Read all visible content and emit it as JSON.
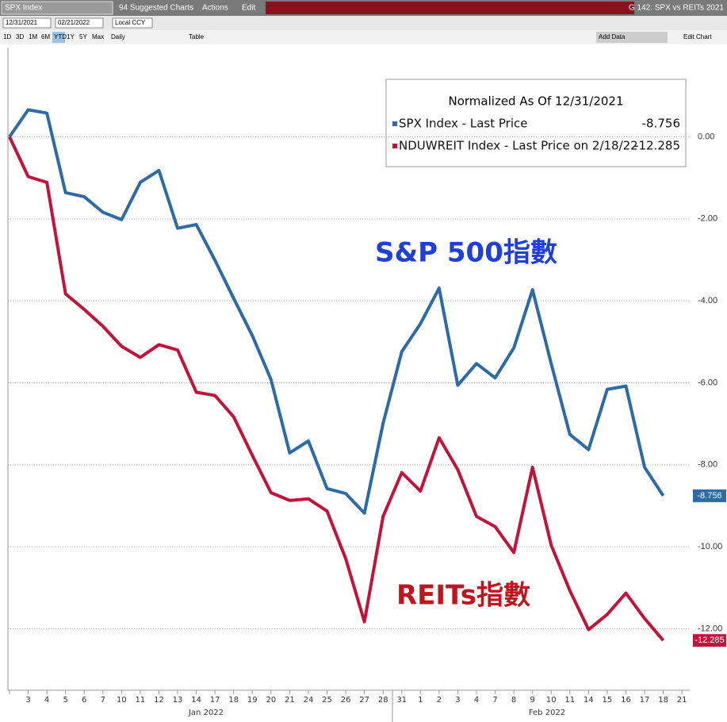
{
  "toolbar": {
    "security": "SPX Index",
    "suggested": "94 Suggested Charts",
    "actions": "Actions",
    "edit": "Edit",
    "chart_name": "G 142: SPX vs REITs 2021",
    "start_date": "12/31/2021",
    "end_date": "02/21/2022",
    "currency": "Local CCY",
    "periods": [
      "1D",
      "3D",
      "1M",
      "6M",
      "YTD",
      "1Y",
      "5Y",
      "Max"
    ],
    "frequency": "Daily",
    "table": "Table",
    "add_data": "Add Data",
    "edit_chart": "Edit Chart"
  },
  "chart_data": {
    "type": "line",
    "legend_title": "Normalized As Of 12/31/2021",
    "categories": [
      null,
      "3",
      "4",
      "5",
      "6",
      "7",
      "10",
      "11",
      "12",
      "13",
      "14",
      "17",
      "18",
      "19",
      "20",
      "21",
      "24",
      "25",
      "26",
      "27",
      "28",
      "31",
      "1",
      "2",
      "3",
      "4",
      "7",
      "8",
      "9",
      "10",
      "11",
      "14",
      "15",
      "16",
      "17",
      "18",
      "21"
    ],
    "month_labels": [
      "Jan 2022",
      "Feb 2022"
    ],
    "series": [
      {
        "name": "SPX Index - Last Price",
        "color": "#2e6aa4",
        "values": [
          0,
          0.66,
          0.58,
          -1.36,
          -1.46,
          -1.84,
          -2.02,
          -1.11,
          -0.82,
          -2.23,
          -2.14,
          -3.01,
          -3.94,
          -4.85,
          -5.92,
          -7.71,
          -7.42,
          -8.58,
          -8.7,
          -9.18,
          -6.99,
          -5.24,
          -4.56,
          -3.69,
          -6.06,
          -5.53,
          -5.88,
          -5.15,
          -3.73,
          -5.53,
          -7.26,
          -7.63,
          -6.16,
          -6.08,
          -8.06,
          -8.756,
          null
        ]
      },
      {
        "name": "NDUWREIT Index - Last Price on 2/18/22",
        "color": "#c0143c",
        "values": [
          0,
          -0.97,
          -1.11,
          -3.83,
          -4.21,
          -4.62,
          -5.11,
          -5.38,
          -5.07,
          -5.2,
          -6.23,
          -6.31,
          -6.83,
          -7.77,
          -8.68,
          -8.87,
          -8.83,
          -9.13,
          -10.29,
          -11.83,
          -9.26,
          -8.19,
          -8.64,
          -7.34,
          -8.12,
          -9.26,
          -9.51,
          -10.14,
          -8.06,
          -9.96,
          -11.07,
          -12.02,
          -11.65,
          -11.13,
          -11.75,
          -12.285,
          null
        ]
      }
    ],
    "annotations": [
      {
        "text": "S&P 500指數",
        "color": "#1f3fd6"
      },
      {
        "text": "REITs指數",
        "color": "#c0141e"
      }
    ],
    "ylim": [
      -13.5,
      1.5
    ],
    "yticks": [
      {
        "value": 0,
        "label": "0.00"
      },
      {
        "value": -2,
        "label": "-2.00"
      },
      {
        "value": -4,
        "label": "-4.00"
      },
      {
        "value": -6,
        "label": "-6.00"
      },
      {
        "value": -8,
        "label": "-8.00"
      },
      {
        "value": -10,
        "label": "-10.00"
      },
      {
        "value": -12,
        "label": "-12.00"
      }
    ],
    "grid": true
  }
}
